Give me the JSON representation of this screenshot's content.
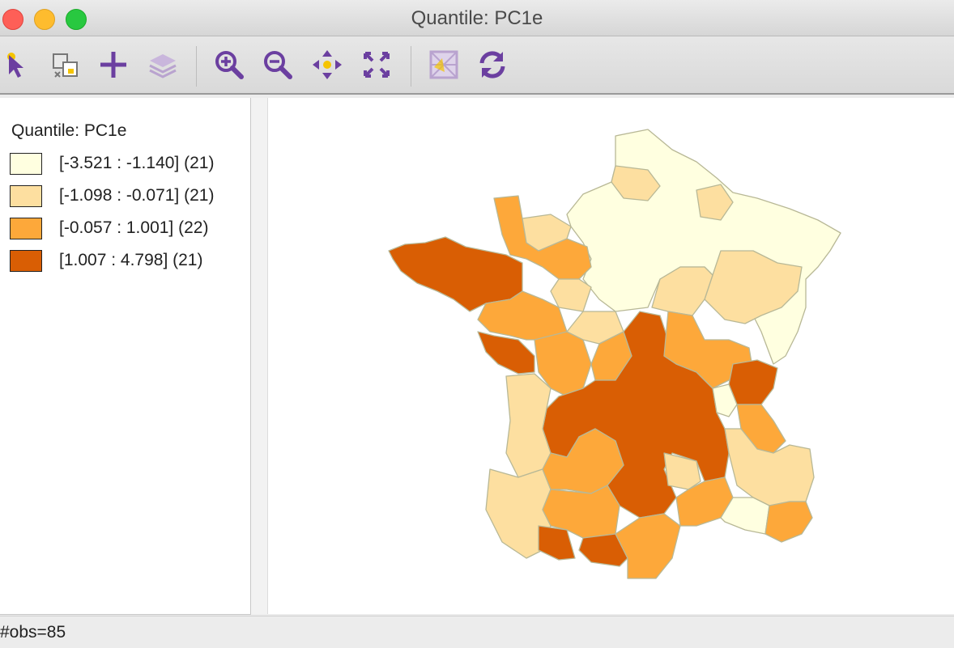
{
  "window": {
    "title": "Quantile: PC1e"
  },
  "toolbar": {
    "tools": [
      {
        "name": "select-tool-icon",
        "color": "#6b3fa0"
      },
      {
        "name": "copy-image-icon",
        "color": "#777777"
      },
      {
        "name": "add-layer-icon",
        "color": "#6b3fa0"
      },
      {
        "name": "layers-icon",
        "color": "#b9a3cf"
      },
      {
        "name": "zoom-in-icon",
        "color": "#6b3fa0"
      },
      {
        "name": "zoom-out-icon",
        "color": "#6b3fa0"
      },
      {
        "name": "pan-icon",
        "color": "#6b3fa0"
      },
      {
        "name": "full-extent-icon",
        "color": "#6b3fa0"
      },
      {
        "name": "basemap-icon",
        "color": "#b9a3cf"
      },
      {
        "name": "refresh-icon",
        "color": "#6b3fa0"
      }
    ]
  },
  "legend": {
    "title": "Quantile: PC1e",
    "items": [
      {
        "label": "[-3.521 : -1.140] (21)",
        "color": "#ffffe0"
      },
      {
        "label": "[-1.098 : -0.071] (21)",
        "color": "#fddfa0"
      },
      {
        "label": "[-0.057 : 1.001] (22)",
        "color": "#fda83a"
      },
      {
        "label": "[1.007 : 4.798] (21)",
        "color": "#d95e04"
      }
    ]
  },
  "map": {
    "border_color": "#b8b896"
  },
  "status": {
    "text": "#obs=85"
  }
}
